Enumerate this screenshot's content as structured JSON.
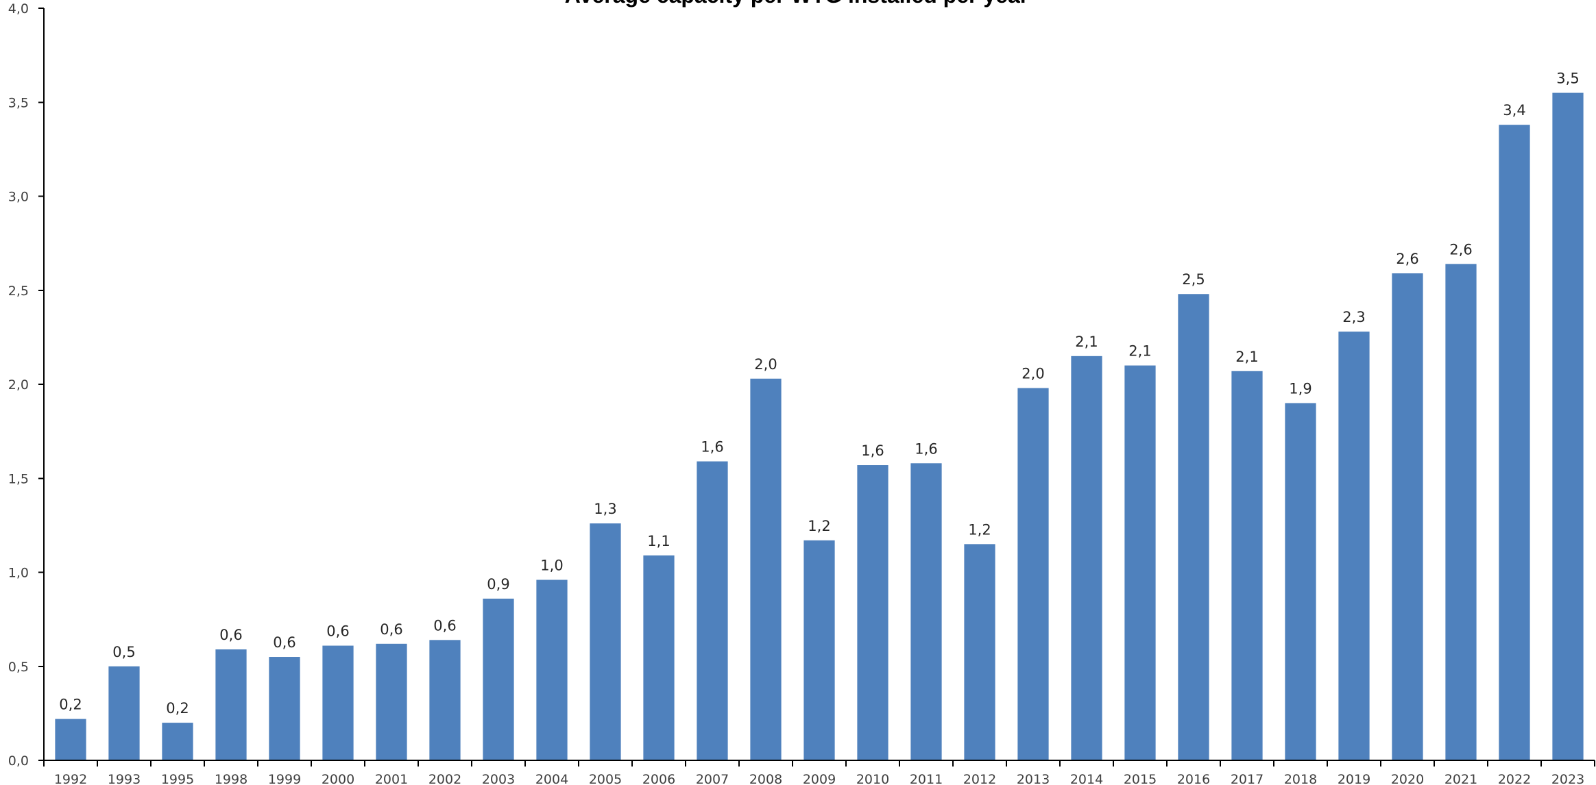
{
  "chart_data": {
    "type": "bar",
    "title": "Average capacity per WTG installed per year",
    "xlabel": "",
    "ylabel": "",
    "ylim": [
      0,
      4
    ],
    "yticks": [
      "0,0",
      "0,5",
      "1,0",
      "1,5",
      "2,0",
      "2,5",
      "3,0",
      "3,5",
      "4,0"
    ],
    "ytick_values": [
      0,
      0.5,
      1.0,
      1.5,
      2.0,
      2.5,
      3.0,
      3.5,
      4.0
    ],
    "categories": [
      "1992",
      "1993",
      "1995",
      "1998",
      "1999",
      "2000",
      "2001",
      "2002",
      "2003",
      "2004",
      "2005",
      "2006",
      "2007",
      "2008",
      "2009",
      "2010",
      "2011",
      "2012",
      "2013",
      "2014",
      "2015",
      "2016",
      "2017",
      "2018",
      "2019",
      "2020",
      "2021",
      "2022",
      "2023"
    ],
    "values": [
      0.22,
      0.5,
      0.2,
      0.59,
      0.55,
      0.61,
      0.62,
      0.64,
      0.86,
      0.96,
      1.26,
      1.09,
      1.59,
      2.03,
      1.17,
      1.57,
      1.58,
      1.15,
      1.98,
      2.15,
      2.1,
      2.48,
      2.07,
      1.9,
      2.28,
      2.59,
      2.64,
      3.38,
      3.55
    ],
    "data_labels": [
      "0,2",
      "0,5",
      "0,2",
      "0,6",
      "0,6",
      "0,6",
      "0,6",
      "0,6",
      "0,9",
      "1,0",
      "1,3",
      "1,1",
      "1,6",
      "2,0",
      "1,2",
      "1,6",
      "1,6",
      "1,2",
      "2,0",
      "2,1",
      "2,1",
      "2,5",
      "2,1",
      "1,9",
      "2,3",
      "2,6",
      "2,6",
      "3,4",
      "3,5"
    ],
    "bar_color": "#4F81BD",
    "grid": false,
    "legend": "none"
  }
}
